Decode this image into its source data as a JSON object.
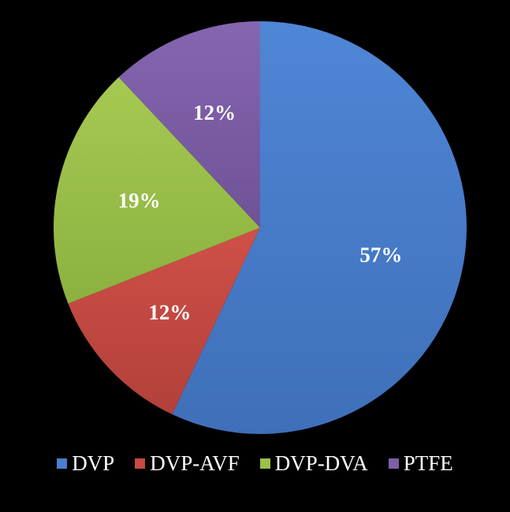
{
  "chart_data": {
    "type": "pie",
    "title": "",
    "categories": [
      "DVP",
      "DVP-AVF",
      "DVP-DVA",
      "PTFE"
    ],
    "values": [
      57,
      12,
      19,
      12
    ],
    "labels": [
      "57%",
      "12%",
      "19%",
      "12%"
    ],
    "colors": [
      "#4a7fcf",
      "#c84a42",
      "#9cc049",
      "#7d5fa8"
    ],
    "start_angle_deg": 0,
    "direction": "clockwise",
    "legend_position": "bottom"
  },
  "background_color": "#000000"
}
